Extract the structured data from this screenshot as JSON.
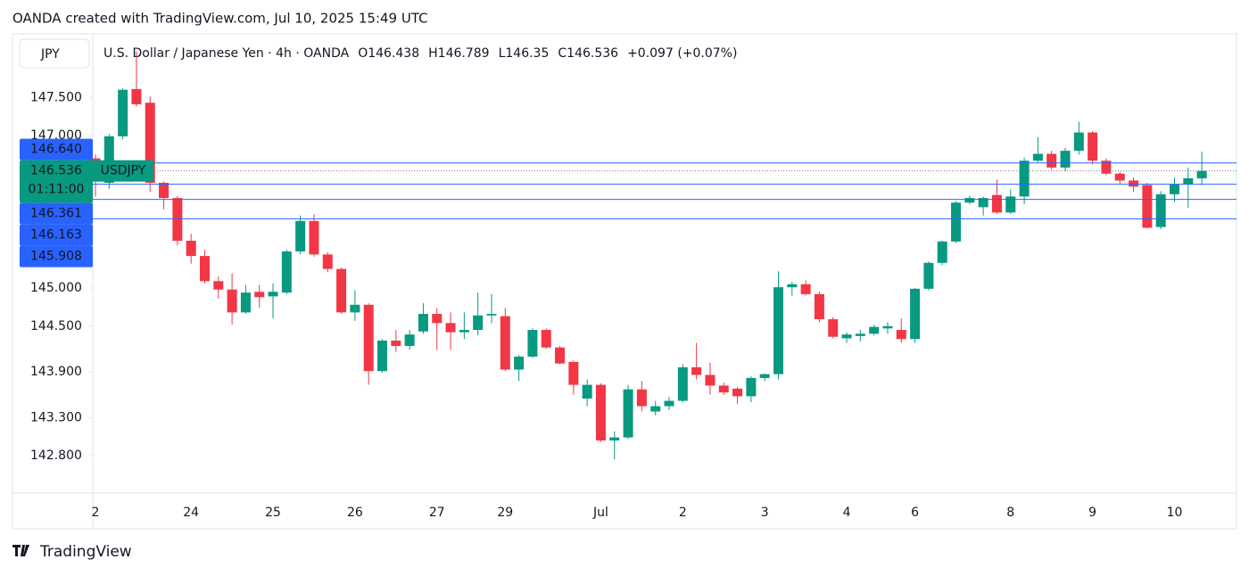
{
  "caption": "OANDA created with TradingView.com, Jul 10, 2025 15:49 UTC",
  "footer_brand": "TradingView",
  "chart_data": {
    "type": "candlestick",
    "title": "U.S. Dollar / Japanese Yen · 4h · OANDA",
    "currency": "JPY",
    "legend": [
      {
        "label": "O",
        "value": 146.438
      },
      {
        "label": "H",
        "value": 146.789
      },
      {
        "label": "L",
        "value": 146.35
      },
      {
        "label": "C",
        "value": 146.536
      }
    ],
    "change_label": "+0.097 (+0.07%)",
    "symbol": "USDJPY",
    "countdown": "01:11:00",
    "last_price": 146.536,
    "up_color": "#089981",
    "down_color": "#f23645",
    "price_line_color": "#2962ff",
    "grid": false,
    "price_lines": [
      {
        "value": 146.64,
        "label": "146.640"
      },
      {
        "value": 146.361,
        "label": "146.361"
      },
      {
        "value": 146.163,
        "label": "146.163"
      },
      {
        "value": 145.908,
        "label": "145.908"
      }
    ],
    "ylim": [
      142.31,
      148.31
    ],
    "yticks": [
      {
        "value": 147.5,
        "label": "147.500"
      },
      {
        "value": 147,
        "label": "147.000"
      },
      {
        "value": 145,
        "label": "145.000"
      },
      {
        "value": 144.5,
        "label": "144.500"
      },
      {
        "value": 143.9,
        "label": "143.900"
      },
      {
        "value": 143.3,
        "label": "143.300"
      },
      {
        "value": 142.8,
        "label": "142.800"
      }
    ],
    "categories": [
      "2",
      null,
      null,
      null,
      null,
      null,
      null,
      "24",
      null,
      null,
      null,
      null,
      null,
      "25",
      null,
      null,
      null,
      null,
      null,
      "26",
      null,
      null,
      null,
      null,
      null,
      "27",
      null,
      null,
      null,
      null,
      "29",
      null,
      null,
      null,
      null,
      null,
      null,
      "Jul",
      null,
      null,
      null,
      null,
      null,
      "2",
      null,
      null,
      null,
      null,
      null,
      "3",
      null,
      null,
      null,
      null,
      null,
      "4",
      null,
      null,
      null,
      null,
      "6",
      null,
      null,
      null,
      null,
      null,
      null,
      "8",
      null,
      null,
      null,
      null,
      null,
      "9",
      null,
      null,
      null,
      null,
      null,
      "10",
      null,
      null
    ],
    "open": [
      146.7,
      146.38,
      146.99,
      147.61,
      147.43,
      146.38,
      146.18,
      145.62,
      145.42,
      145.09,
      144.98,
      144.68,
      144.95,
      144.89,
      144.94,
      145.48,
      145.88,
      145.44,
      145.25,
      144.68,
      144.78,
      143.91,
      144.31,
      144.24,
      144.43,
      144.66,
      144.54,
      144.42,
      144.45,
      144.64,
      144.63,
      143.93,
      144.1,
      144.45,
      144.22,
      144.03,
      143.55,
      143.73,
      143.0,
      143.04,
      143.67,
      143.38,
      143.45,
      143.52,
      143.96,
      143.86,
      143.72,
      143.68,
      143.58,
      143.82,
      143.87,
      145.01,
      145.05,
      144.92,
      144.59,
      144.34,
      144.37,
      144.4,
      144.47,
      144.45,
      144.33,
      144.99,
      145.33,
      145.61,
      146.12,
      146.06,
      146.22,
      145.99,
      146.2,
      146.67,
      146.76,
      146.58,
      146.8,
      147.04,
      146.67,
      146.5,
      146.41,
      146.35,
      145.8,
      146.23,
      146.36,
      146.438
    ],
    "high": [
      146.75,
      147.02,
      147.62,
      148.1,
      147.51,
      146.4,
      146.21,
      145.71,
      145.5,
      145.15,
      145.19,
      145.04,
      145.04,
      145.06,
      145.5,
      145.95,
      145.97,
      145.47,
      145.27,
      144.97,
      144.8,
      144.33,
      144.45,
      144.45,
      144.8,
      144.74,
      144.68,
      144.68,
      144.94,
      144.92,
      144.74,
      144.12,
      144.47,
      144.47,
      144.24,
      144.05,
      143.8,
      143.75,
      143.12,
      143.73,
      143.78,
      143.52,
      143.57,
      144.0,
      144.28,
      144.02,
      143.76,
      143.7,
      143.84,
      143.88,
      145.22,
      145.08,
      145.1,
      144.95,
      144.62,
      144.42,
      144.45,
      144.52,
      144.55,
      144.6,
      145.0,
      145.35,
      145.62,
      146.14,
      146.21,
      146.2,
      146.42,
      146.29,
      146.71,
      146.98,
      146.8,
      146.84,
      147.18,
      147.06,
      146.7,
      146.52,
      146.45,
      146.38,
      146.27,
      146.45,
      146.58,
      146.789
    ],
    "low": [
      146.2,
      146.3,
      146.95,
      147.38,
      146.26,
      146.03,
      145.56,
      145.32,
      145.06,
      144.86,
      144.52,
      144.66,
      144.74,
      144.6,
      144.92,
      145.44,
      145.41,
      145.21,
      144.66,
      144.57,
      143.73,
      143.89,
      144.16,
      144.19,
      144.4,
      144.19,
      144.19,
      144.33,
      144.38,
      144.54,
      143.91,
      143.78,
      144.08,
      144.2,
      144.0,
      143.6,
      143.45,
      142.98,
      142.75,
      143.02,
      143.38,
      143.33,
      143.4,
      143.5,
      143.8,
      143.6,
      143.6,
      143.48,
      143.5,
      143.78,
      143.8,
      144.9,
      144.9,
      144.55,
      144.34,
      144.28,
      144.3,
      144.38,
      144.4,
      144.28,
      144.28,
      144.97,
      145.3,
      145.59,
      146.1,
      145.95,
      145.97,
      145.97,
      146.1,
      146.65,
      146.55,
      146.53,
      146.75,
      146.62,
      146.48,
      146.36,
      146.26,
      145.78,
      145.77,
      146.13,
      146.05,
      146.35
    ],
    "close": [
      146.4,
      146.99,
      147.6,
      147.41,
      146.38,
      146.18,
      145.62,
      145.42,
      145.09,
      144.98,
      144.68,
      144.94,
      144.88,
      144.95,
      145.48,
      145.88,
      145.44,
      145.25,
      144.68,
      144.78,
      143.91,
      144.31,
      144.24,
      144.39,
      144.66,
      144.54,
      144.42,
      144.45,
      144.64,
      144.66,
      143.93,
      144.1,
      144.45,
      144.22,
      144.01,
      143.73,
      143.73,
      143.0,
      143.04,
      143.67,
      143.45,
      143.45,
      143.52,
      143.96,
      143.86,
      143.72,
      143.63,
      143.58,
      143.82,
      143.87,
      145.01,
      145.05,
      144.92,
      144.59,
      144.36,
      144.39,
      144.4,
      144.49,
      144.5,
      144.33,
      144.99,
      145.33,
      145.61,
      146.12,
      146.18,
      146.18,
      145.99,
      146.2,
      146.67,
      146.76,
      146.58,
      146.8,
      147.04,
      146.67,
      146.5,
      146.41,
      146.33,
      145.79,
      146.23,
      146.36,
      146.44,
      146.536
    ]
  }
}
